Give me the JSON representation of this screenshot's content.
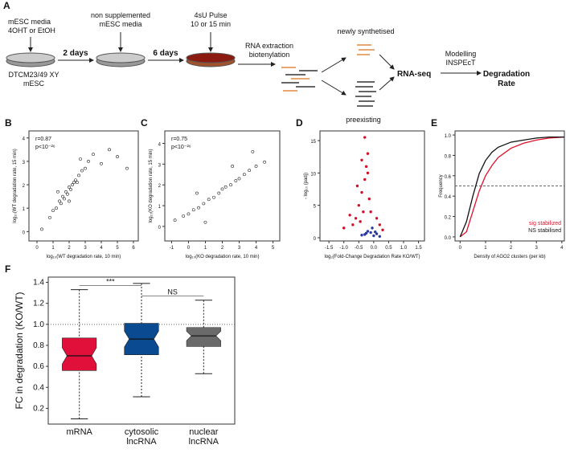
{
  "diagram": {
    "label": "A",
    "start_media": [
      "mESC media",
      "4OHT or EtOH"
    ],
    "cell_line": [
      "DTCM23/49 XY",
      "mESC"
    ],
    "step1": "2 days",
    "second_media": [
      "non supplemented",
      "mESC media"
    ],
    "step2": "6 days",
    "pulse": [
      "4sU Pulse",
      "10 or 15 min"
    ],
    "extraction": [
      "RNA extraction",
      "biotenylation"
    ],
    "newly": "newly synthetised",
    "preexisting": "preexisting",
    "seq": "RNA-seq",
    "modelling": [
      "Modelling",
      "INSPEcT"
    ],
    "result": [
      "Degradation",
      "Rate"
    ]
  },
  "chart_data": [
    {
      "type": "scatter",
      "panel": "B",
      "annotations": [
        "r=0.87",
        "p<10⁻²⁶"
      ],
      "x_label": "log₁₀(WT degradation rate, 10 min)",
      "y_label": "log₁₀(WT degradation rate, 15 min)",
      "series": [
        {
          "color": "#222222",
          "x": [
            0.3,
            0.8,
            1.0,
            1.2,
            1.4,
            1.5,
            1.6,
            1.7,
            1.8,
            1.9,
            2.0,
            2.1,
            2.2,
            2.3,
            2.4,
            2.5,
            2.6,
            2.8,
            3.0,
            3.2,
            3.5,
            4.0,
            4.5,
            5.0,
            5.6,
            1.3,
            2.0,
            2.7
          ],
          "values": [
            0.1,
            0.6,
            0.9,
            1.0,
            1.3,
            1.2,
            1.5,
            1.4,
            1.7,
            1.6,
            1.9,
            1.8,
            2.0,
            2.1,
            2.2,
            2.1,
            2.4,
            2.6,
            2.7,
            3.0,
            3.3,
            2.9,
            3.5,
            3.2,
            2.7,
            1.7,
            1.3,
            3.1
          ]
        }
      ],
      "xlim": [
        -0.5,
        6.3
      ],
      "xticks": [
        0,
        1,
        2,
        3,
        4,
        5,
        6
      ],
      "ylim": [
        -0.4,
        4.3
      ],
      "yticks": [
        0,
        1,
        2,
        3,
        4
      ]
    },
    {
      "type": "scatter",
      "panel": "C",
      "annotations": [
        "r=0.75",
        "p<10⁻²⁶"
      ],
      "x_label": "log₁₀(KO degradation rate, 10 min)",
      "y_label": "log₁₀(KO degradation rate, 15 min)",
      "series": [
        {
          "color": "#222222",
          "x": [
            -0.8,
            -0.3,
            0,
            0.3,
            0.6,
            0.9,
            1.2,
            1.5,
            1.8,
            2.0,
            2.2,
            2.5,
            2.8,
            3.0,
            3.3,
            3.6,
            4.0,
            4.5,
            1.0,
            2.6,
            3.8,
            0.5
          ],
          "values": [
            0.3,
            0.5,
            0.6,
            0.8,
            0.9,
            1.1,
            1.3,
            1.4,
            1.6,
            1.8,
            1.9,
            2.0,
            2.2,
            2.3,
            2.5,
            2.7,
            2.9,
            3.1,
            0.2,
            2.9,
            3.6,
            1.6
          ]
        }
      ],
      "xlim": [
        -1.4,
        5.4
      ],
      "xticks": [
        -1,
        0,
        1,
        2,
        3,
        4,
        5
      ],
      "ylim": [
        -0.7,
        4.6
      ],
      "yticks": [
        0,
        1,
        2,
        3,
        4
      ]
    },
    {
      "type": "scatter",
      "panel": "D",
      "x_label": "log₂(Fold-Change Degradation Rate KO/WT)",
      "y_label": "- log₁₀ (padj)",
      "series": [
        {
          "color": "#d0102a",
          "x": [
            -0.6,
            -0.5,
            -0.4,
            -0.3,
            -0.35,
            -0.25,
            -0.2,
            -0.45,
            -0.7,
            -0.15,
            -0.1,
            0.1,
            0.2,
            -0.55,
            -1.0,
            -0.3,
            -0.2,
            -0.4,
            0.3,
            -0.8
          ],
          "values": [
            3,
            5,
            7,
            9,
            4,
            11,
            13,
            2.5,
            2,
            6,
            4,
            3,
            2,
            8,
            1.5,
            15.5,
            10,
            12,
            1.2,
            3.5
          ]
        },
        {
          "color": "#2b3aa0",
          "x": [
            -0.3,
            -0.2,
            -0.1,
            0,
            0.1,
            -0.4,
            0.2,
            -0.05,
            -0.25,
            0.05
          ],
          "values": [
            0.5,
            1,
            0.8,
            0.3,
            0.6,
            0.4,
            0.2,
            1.5,
            0.7,
            0.9
          ]
        }
      ],
      "xlim": [
        -1.8,
        1.7
      ],
      "xticks": [
        -1.5,
        {
          "value": -1.0,
          "label": "-1.0"
        },
        -0.5,
        {
          "value": 0,
          "label": "0.0"
        },
        0.5,
        {
          "value": 1.0,
          "label": "1.0"
        },
        1.5
      ],
      "ylim": [
        -0.5,
        16.5
      ],
      "yticks": [
        0,
        5,
        10,
        15
      ]
    },
    {
      "type": "line",
      "panel": "E",
      "x_label": "Density of AGO2 clusters (per kb)",
      "y_label": "Frequency",
      "ref_line": 0.5,
      "series": [
        {
          "name": "sig stabilized",
          "color": "#e0102a",
          "x": [
            0,
            0.25,
            0.5,
            0.75,
            1,
            1.25,
            1.5,
            2,
            2.5,
            3,
            3.5,
            4.1
          ],
          "values": [
            0,
            0.05,
            0.25,
            0.45,
            0.6,
            0.7,
            0.78,
            0.87,
            0.92,
            0.95,
            0.97,
            0.98
          ]
        },
        {
          "name": "NS stabilised",
          "color": "#111111",
          "x": [
            0,
            0.25,
            0.5,
            0.75,
            1,
            1.25,
            1.5,
            2,
            2.5,
            3,
            3.5,
            4.1
          ],
          "values": [
            0,
            0.15,
            0.4,
            0.62,
            0.75,
            0.83,
            0.88,
            0.93,
            0.95,
            0.97,
            0.98,
            0.98
          ]
        }
      ],
      "xlim": [
        -0.2,
        4.1
      ],
      "xticks": [
        0,
        1,
        2,
        3,
        4
      ],
      "ylim": [
        -0.04,
        1.04
      ],
      "yticks": [
        {
          "value": 0,
          "label": "0.0"
        },
        0.2,
        0.4,
        0.6,
        0.8,
        {
          "value": 1.0,
          "label": "1.0"
        }
      ]
    },
    {
      "type": "box",
      "panel": "F",
      "y_label": "FC in degradation (KO/WT)",
      "ref_line": 1.0,
      "categories": [
        [
          "mRNA"
        ],
        [
          "cytosolic",
          "lncRNA"
        ],
        [
          "nuclear",
          "lncRNA"
        ]
      ],
      "boxes": [
        {
          "color": "#e0103a",
          "whislo": 0.1,
          "q1": 0.56,
          "median": 0.7,
          "q3": 0.87,
          "whishi": 1.33
        },
        {
          "color": "#0a4a90",
          "whislo": 0.31,
          "q1": 0.71,
          "median": 0.86,
          "q3": 1.01,
          "whishi": 1.39
        },
        {
          "color": "#6a6a6a",
          "whislo": 0.53,
          "q1": 0.79,
          "median": 0.89,
          "q3": 0.97,
          "whishi": 1.23
        }
      ],
      "annotations": [
        {
          "text": "***",
          "y": 1.37
        },
        {
          "text": "NS",
          "y": 1.27
        }
      ],
      "ylim": [
        0.05,
        1.45
      ],
      "yticks": [
        0.2,
        0.4,
        0.6,
        0.8,
        {
          "value": 1.0,
          "label": "1.0"
        },
        1.2,
        1.4
      ]
    }
  ]
}
